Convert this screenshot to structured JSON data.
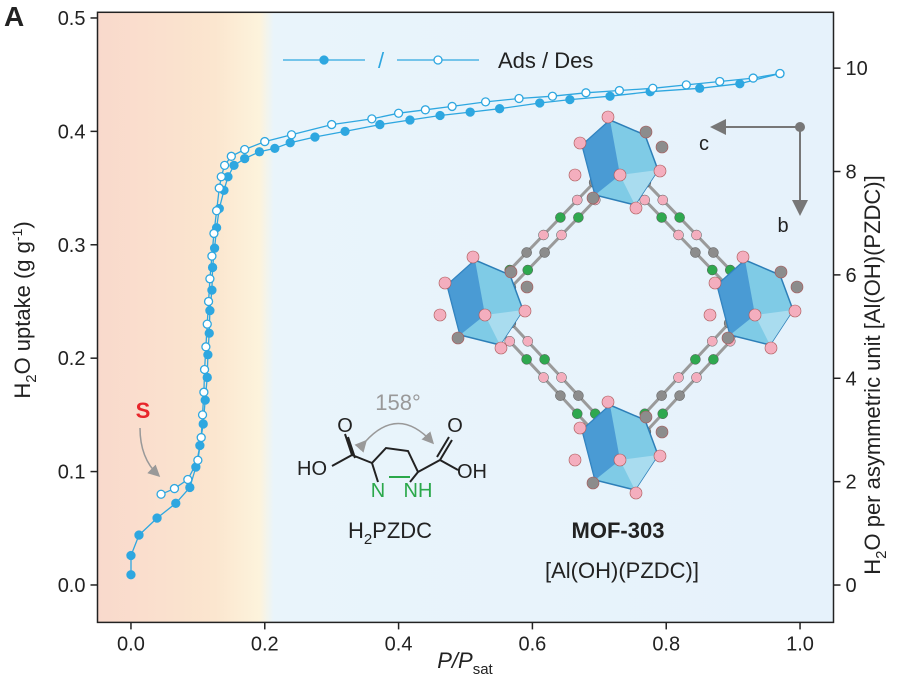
{
  "chart_data": {
    "type": "scatter-line",
    "panel_label": "A",
    "xlabel": {
      "italic": "P/P",
      "sub": "sat"
    },
    "ylabel": {
      "a": "H",
      "sub": "2",
      "b": "O uptake (g g",
      "sup": "-1",
      "c": ")"
    },
    "y2label": {
      "a": "H",
      "sub": "2",
      "b": "O per asymmetric unit [Al(OH)(PZDC)]"
    },
    "xlim": [
      -0.05,
      1.05
    ],
    "ylim": [
      -0.033,
      0.505
    ],
    "y2lim": [
      -0.723,
      11.08
    ],
    "xticks": [
      {
        "value": 0,
        "label": "0.0"
      },
      {
        "value": 0.2,
        "label": "0.2"
      },
      {
        "value": 0.4,
        "label": "0.4"
      },
      {
        "value": 0.6,
        "label": "0.6"
      },
      {
        "value": 0.8,
        "label": "0.8"
      },
      {
        "value": 1,
        "label": "1.0"
      }
    ],
    "yticks": [
      {
        "value": 0,
        "label": "0.0"
      },
      {
        "value": 0.1,
        "label": "0.1"
      },
      {
        "value": 0.2,
        "label": "0.2"
      },
      {
        "value": 0.3,
        "label": "0.3"
      },
      {
        "value": 0.4,
        "label": "0.4"
      },
      {
        "value": 0.5,
        "label": "0.5"
      }
    ],
    "y2ticks": [
      0,
      2,
      4,
      6,
      8,
      10
    ],
    "legend": {
      "label": "Ads / Des",
      "separator": "/",
      "position": "top"
    },
    "series": [
      {
        "marker": "filled",
        "color": "#2ea7e0",
        "x": [
          0.0,
          0.0,
          0.012,
          0.039,
          0.067,
          0.088,
          0.097,
          0.103,
          0.108,
          0.111,
          0.114,
          0.115,
          0.117,
          0.118,
          0.121,
          0.122,
          0.125,
          0.128,
          0.132,
          0.139,
          0.145,
          0.154,
          0.17,
          0.192,
          0.215,
          0.238,
          0.275,
          0.32,
          0.372,
          0.417,
          0.462,
          0.507,
          0.551,
          0.611,
          0.656,
          0.716,
          0.776,
          0.85,
          0.91,
          0.97
        ],
        "values": [
          0.009,
          0.026,
          0.044,
          0.059,
          0.072,
          0.086,
          0.104,
          0.123,
          0.142,
          0.163,
          0.183,
          0.203,
          0.222,
          0.242,
          0.26,
          0.28,
          0.297,
          0.315,
          0.332,
          0.348,
          0.36,
          0.37,
          0.376,
          0.382,
          0.385,
          0.39,
          0.395,
          0.4,
          0.406,
          0.41,
          0.414,
          0.417,
          0.42,
          0.425,
          0.428,
          0.431,
          0.435,
          0.438,
          0.442,
          0.451
        ]
      },
      {
        "marker": "open",
        "color": "#2ea7e0",
        "x": [
          0.97,
          0.93,
          0.88,
          0.83,
          0.78,
          0.73,
          0.68,
          0.63,
          0.58,
          0.53,
          0.48,
          0.44,
          0.4,
          0.36,
          0.3,
          0.24,
          0.2,
          0.17,
          0.15,
          0.14,
          0.135,
          0.132,
          0.128,
          0.124,
          0.121,
          0.118,
          0.116,
          0.114,
          0.112,
          0.11,
          0.109,
          0.107,
          0.105,
          0.1,
          0.085,
          0.065,
          0.045
        ],
        "values": [
          0.451,
          0.447,
          0.444,
          0.441,
          0.438,
          0.436,
          0.434,
          0.431,
          0.429,
          0.426,
          0.422,
          0.419,
          0.416,
          0.411,
          0.406,
          0.397,
          0.391,
          0.384,
          0.378,
          0.37,
          0.36,
          0.35,
          0.33,
          0.31,
          0.29,
          0.27,
          0.25,
          0.23,
          0.21,
          0.19,
          0.17,
          0.15,
          0.13,
          0.11,
          0.093,
          0.085,
          0.08
        ]
      }
    ],
    "annotations": {
      "s_label": "S",
      "angle": "158°",
      "atoms": {
        "ho": "HO",
        "oh": "OH",
        "o_left": "O",
        "o_right": "O",
        "n": "N",
        "nh": "NH"
      },
      "linker": {
        "a": "H",
        "sub": "2",
        "b": "PZDC"
      },
      "mof_name": "MOF-303",
      "mof_formula": "[Al(OH)(PZDC)]",
      "axis_c": "c",
      "axis_b": "b"
    }
  }
}
